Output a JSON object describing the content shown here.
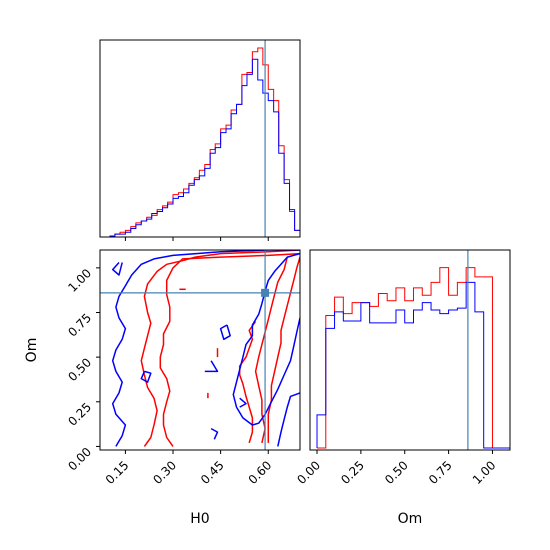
{
  "chart_data": {
    "type": "corner",
    "parameters": [
      "H0",
      "Om"
    ],
    "truths": {
      "H0": 0.59,
      "Om": 0.86
    },
    "truth_color": "#4682b4",
    "series_colors": {
      "red": "#ff0000",
      "blue": "#0000ff"
    },
    "xlabels": {
      "H0": "H0",
      "Om": "Om"
    },
    "ylabel": "Om",
    "h0_ticks": [
      "0.15",
      "0.30",
      "0.45",
      "0.60"
    ],
    "om_ticks": [
      "0.00",
      "0.25",
      "0.50",
      "0.75",
      "1.00"
    ],
    "h0_hist": {
      "x_edges": [
        0.1,
        0.117,
        0.133,
        0.15,
        0.167,
        0.183,
        0.2,
        0.217,
        0.233,
        0.25,
        0.267,
        0.283,
        0.3,
        0.317,
        0.333,
        0.35,
        0.367,
        0.383,
        0.4,
        0.417,
        0.433,
        0.45,
        0.467,
        0.483,
        0.5,
        0.517,
        0.533,
        0.55,
        0.567,
        0.583,
        0.6,
        0.617,
        0.633,
        0.65,
        0.667,
        0.683,
        0.7
      ],
      "red": [
        0.0,
        0.01,
        0.02,
        0.03,
        0.05,
        0.07,
        0.08,
        0.1,
        0.11,
        0.14,
        0.16,
        0.18,
        0.22,
        0.23,
        0.25,
        0.28,
        0.31,
        0.35,
        0.38,
        0.46,
        0.49,
        0.57,
        0.59,
        0.67,
        0.7,
        0.86,
        0.87,
        0.98,
        1.0,
        0.91,
        0.78,
        0.72,
        0.48,
        0.3,
        0.13,
        0.03
      ],
      "blue": [
        0.0,
        0.01,
        0.01,
        0.02,
        0.04,
        0.06,
        0.08,
        0.09,
        0.12,
        0.13,
        0.15,
        0.17,
        0.2,
        0.21,
        0.23,
        0.27,
        0.3,
        0.32,
        0.36,
        0.44,
        0.47,
        0.55,
        0.57,
        0.65,
        0.7,
        0.8,
        0.86,
        0.94,
        0.83,
        0.76,
        0.72,
        0.66,
        0.44,
        0.28,
        0.14,
        0.03
      ]
    },
    "om_hist": {
      "x_edges": [
        0.0,
        0.05,
        0.1,
        0.15,
        0.2,
        0.25,
        0.3,
        0.35,
        0.4,
        0.45,
        0.5,
        0.55,
        0.6,
        0.65,
        0.7,
        0.75,
        0.8,
        0.85,
        0.9,
        0.95,
        1.0,
        1.05,
        1.1
      ],
      "red": [
        0.0,
        0.72,
        0.82,
        0.73,
        0.79,
        0.79,
        0.77,
        0.84,
        0.8,
        0.87,
        0.8,
        0.87,
        0.83,
        0.9,
        0.98,
        0.83,
        0.9,
        0.98,
        0.93,
        0.93,
        0.0,
        0.0
      ],
      "blue": [
        0.18,
        0.65,
        0.74,
        0.69,
        0.69,
        0.79,
        0.68,
        0.68,
        0.68,
        0.75,
        0.68,
        0.75,
        0.79,
        0.75,
        0.73,
        0.75,
        0.76,
        0.9,
        0.74,
        0.0,
        0.0,
        0.0
      ]
    },
    "contours": {
      "red": [
        [
          [
            0.7,
            1.1
          ],
          [
            0.6,
            1.09
          ],
          [
            0.45,
            1.08
          ],
          [
            0.37,
            1.06
          ],
          [
            0.33,
            1.04
          ],
          [
            0.28,
            1.02
          ],
          [
            0.25,
            0.98
          ],
          [
            0.22,
            0.91
          ],
          [
            0.21,
            0.84
          ],
          [
            0.22,
            0.75
          ],
          [
            0.23,
            0.69
          ],
          [
            0.22,
            0.62
          ],
          [
            0.21,
            0.55
          ],
          [
            0.2,
            0.48
          ],
          [
            0.21,
            0.4
          ],
          [
            0.22,
            0.33
          ],
          [
            0.24,
            0.27
          ],
          [
            0.25,
            0.2
          ],
          [
            0.24,
            0.12
          ],
          [
            0.23,
            0.05
          ],
          [
            0.21,
            0.0
          ]
        ],
        [
          [
            0.7,
            1.08
          ],
          [
            0.6,
            1.07
          ],
          [
            0.45,
            1.06
          ],
          [
            0.33,
            1.05
          ],
          [
            0.3,
            1.0
          ],
          [
            0.28,
            0.93
          ],
          [
            0.28,
            0.85
          ],
          [
            0.29,
            0.78
          ],
          [
            0.29,
            0.7
          ],
          [
            0.27,
            0.63
          ],
          [
            0.27,
            0.57
          ],
          [
            0.26,
            0.5
          ],
          [
            0.26,
            0.44
          ],
          [
            0.28,
            0.38
          ],
          [
            0.29,
            0.31
          ],
          [
            0.28,
            0.25
          ],
          [
            0.27,
            0.18
          ],
          [
            0.27,
            0.12
          ],
          [
            0.28,
            0.05
          ],
          [
            0.3,
            0.0
          ]
        ],
        [
          [
            0.7,
            1.06
          ],
          [
            0.69,
            1.0
          ],
          [
            0.68,
            0.93
          ],
          [
            0.67,
            0.86
          ],
          [
            0.66,
            0.79
          ],
          [
            0.65,
            0.72
          ],
          [
            0.64,
            0.65
          ],
          [
            0.64,
            0.58
          ],
          [
            0.63,
            0.5
          ],
          [
            0.62,
            0.42
          ],
          [
            0.61,
            0.34
          ],
          [
            0.61,
            0.26
          ],
          [
            0.6,
            0.18
          ],
          [
            0.6,
            0.1
          ],
          [
            0.6,
            0.02
          ]
        ],
        [
          [
            0.66,
            1.06
          ],
          [
            0.65,
            0.99
          ],
          [
            0.63,
            0.92
          ],
          [
            0.62,
            0.85
          ],
          [
            0.61,
            0.78
          ],
          [
            0.6,
            0.71
          ],
          [
            0.59,
            0.64
          ],
          [
            0.58,
            0.57
          ],
          [
            0.57,
            0.5
          ],
          [
            0.56,
            0.42
          ],
          [
            0.57,
            0.34
          ],
          [
            0.58,
            0.26
          ],
          [
            0.58,
            0.18
          ],
          [
            0.59,
            0.1
          ],
          [
            0.58,
            0.02
          ]
        ],
        [
          [
            0.56,
            0.7
          ],
          [
            0.54,
            0.65
          ],
          [
            0.55,
            0.6
          ],
          [
            0.54,
            0.55
          ],
          [
            0.53,
            0.5
          ],
          [
            0.51,
            0.45
          ],
          [
            0.51,
            0.4
          ],
          [
            0.52,
            0.35
          ],
          [
            0.53,
            0.28
          ],
          [
            0.54,
            0.22
          ],
          [
            0.55,
            0.16
          ],
          [
            0.55,
            0.08
          ],
          [
            0.54,
            0.02
          ]
        ],
        [
          [
            0.44,
            0.55
          ],
          [
            0.44,
            0.5
          ]
        ],
        [
          [
            0.41,
            0.3
          ],
          [
            0.41,
            0.27
          ]
        ],
        [
          [
            0.32,
            0.88
          ],
          [
            0.34,
            0.88
          ]
        ]
      ],
      "blue": [
        [
          [
            0.7,
            1.1
          ],
          [
            0.6,
            1.1
          ],
          [
            0.45,
            1.09
          ],
          [
            0.3,
            1.07
          ],
          [
            0.24,
            1.05
          ],
          [
            0.2,
            1.02
          ],
          [
            0.17,
            0.96
          ],
          [
            0.15,
            0.9
          ],
          [
            0.13,
            0.84
          ],
          [
            0.12,
            0.78
          ],
          [
            0.13,
            0.72
          ],
          [
            0.15,
            0.66
          ],
          [
            0.14,
            0.6
          ],
          [
            0.12,
            0.54
          ],
          [
            0.11,
            0.48
          ],
          [
            0.12,
            0.42
          ],
          [
            0.14,
            0.36
          ],
          [
            0.13,
            0.3
          ],
          [
            0.11,
            0.24
          ],
          [
            0.12,
            0.18
          ],
          [
            0.15,
            0.12
          ],
          [
            0.14,
            0.06
          ],
          [
            0.12,
            0.0
          ]
        ],
        [
          [
            0.13,
            1.03
          ],
          [
            0.11,
            0.99
          ],
          [
            0.13,
            0.96
          ],
          [
            0.14,
            1.03
          ]
        ],
        [
          [
            0.7,
            1.08
          ],
          [
            0.66,
            1.06
          ],
          [
            0.64,
            1.02
          ],
          [
            0.62,
            0.98
          ],
          [
            0.6,
            0.93
          ],
          [
            0.59,
            0.87
          ],
          [
            0.58,
            0.8
          ],
          [
            0.57,
            0.74
          ],
          [
            0.55,
            0.68
          ],
          [
            0.55,
            0.62
          ],
          [
            0.53,
            0.57
          ],
          [
            0.52,
            0.5
          ],
          [
            0.51,
            0.43
          ],
          [
            0.5,
            0.36
          ],
          [
            0.49,
            0.29
          ],
          [
            0.5,
            0.22
          ],
          [
            0.52,
            0.16
          ],
          [
            0.55,
            0.12
          ],
          [
            0.57,
            0.13
          ],
          [
            0.59,
            0.18
          ],
          [
            0.61,
            0.25
          ],
          [
            0.63,
            0.32
          ],
          [
            0.65,
            0.4
          ],
          [
            0.67,
            0.48
          ],
          [
            0.68,
            0.56
          ],
          [
            0.69,
            0.64
          ],
          [
            0.7,
            0.72
          ]
        ],
        [
          [
            0.7,
            0.3
          ],
          [
            0.67,
            0.28
          ],
          [
            0.66,
            0.22
          ],
          [
            0.65,
            0.15
          ],
          [
            0.64,
            0.08
          ],
          [
            0.63,
            0.0
          ]
        ],
        [
          [
            0.47,
            0.68
          ],
          [
            0.48,
            0.62
          ],
          [
            0.46,
            0.6
          ],
          [
            0.45,
            0.66
          ],
          [
            0.47,
            0.68
          ]
        ],
        [
          [
            0.21,
            0.42
          ],
          [
            0.2,
            0.38
          ],
          [
            0.22,
            0.36
          ],
          [
            0.23,
            0.41
          ],
          [
            0.21,
            0.42
          ]
        ],
        [
          [
            0.42,
            0.48
          ],
          [
            0.44,
            0.42
          ],
          [
            0.4,
            0.42
          ]
        ],
        [
          [
            0.51,
            0.27
          ],
          [
            0.53,
            0.24
          ],
          [
            0.51,
            0.22
          ]
        ],
        [
          [
            0.43,
            0.04
          ],
          [
            0.44,
            0.08
          ],
          [
            0.42,
            0.1
          ]
        ]
      ]
    }
  }
}
